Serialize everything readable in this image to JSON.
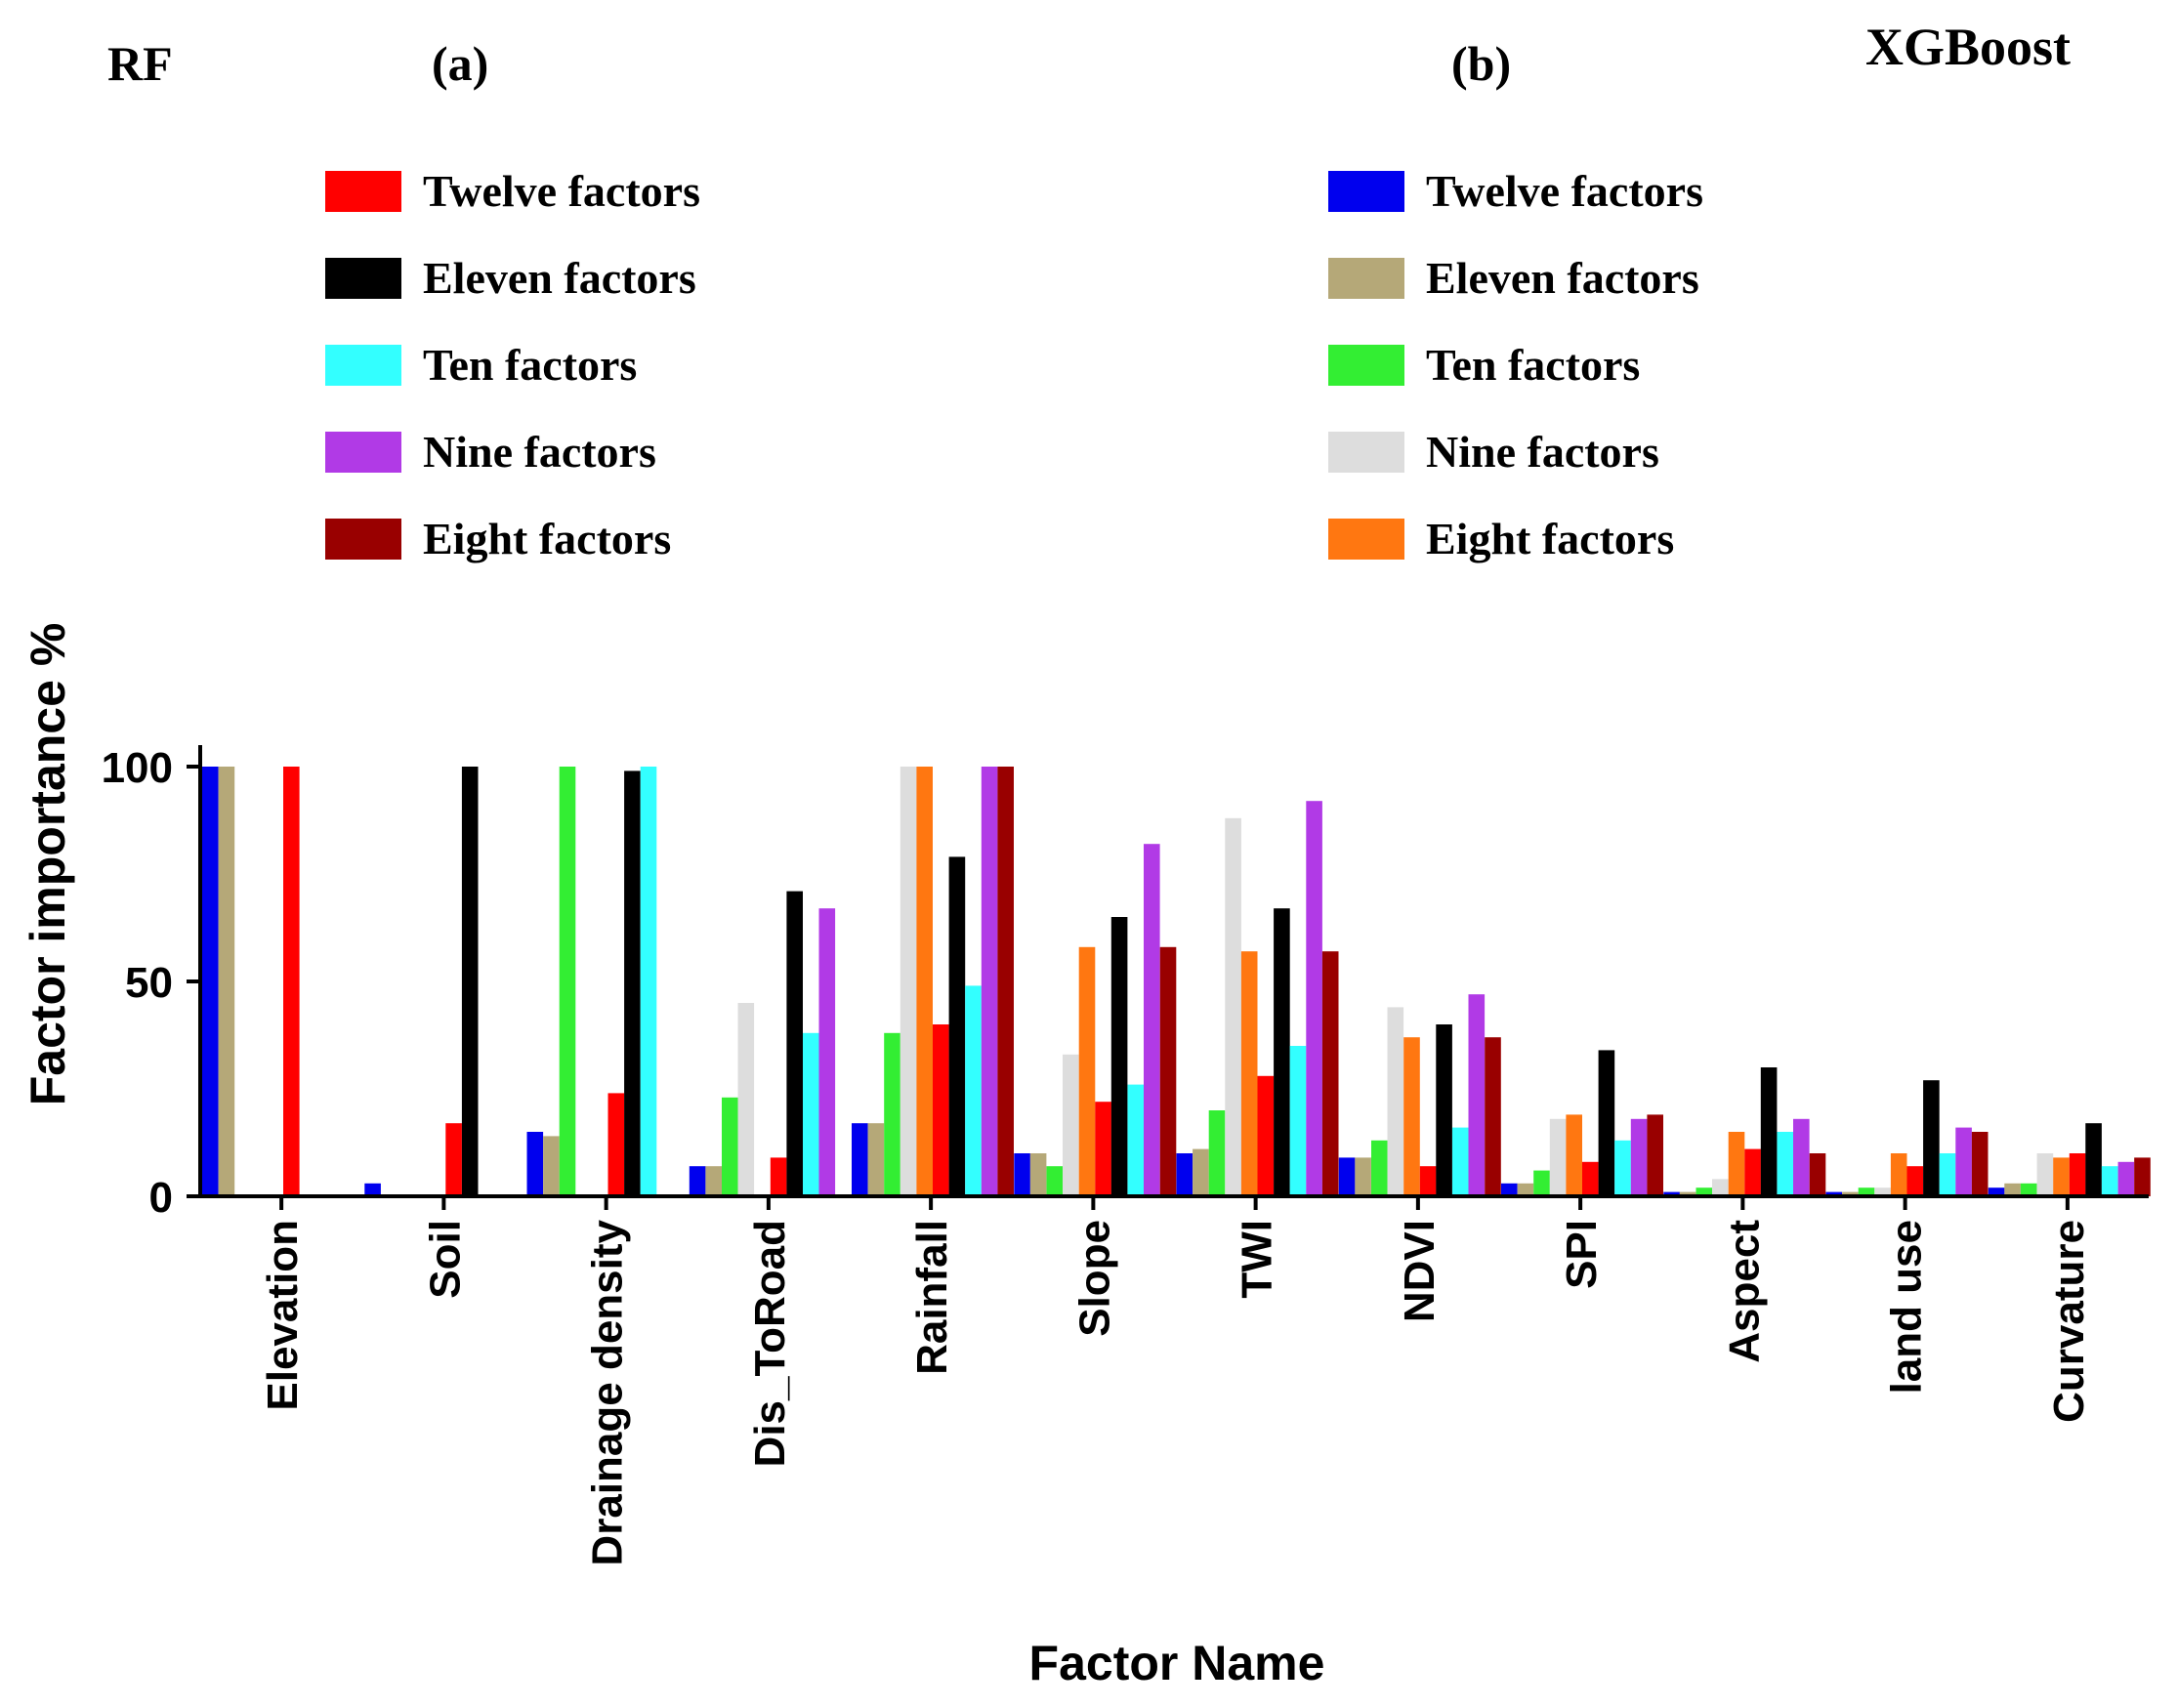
{
  "header": {
    "model_left": "RF",
    "panel_left": "(a)",
    "panel_right": "(b)",
    "model_right": "XGBoost"
  },
  "legend_rf": {
    "entries": [
      {
        "label": "Twelve factors",
        "color": "#ff0000"
      },
      {
        "label": "Eleven factors",
        "color": "#000000"
      },
      {
        "label": "Ten factors",
        "color": "#33ffff"
      },
      {
        "label": "Nine factors",
        "color": "#b13ae6"
      },
      {
        "label": "Eight factors",
        "color": "#990000"
      }
    ]
  },
  "legend_xgb": {
    "entries": [
      {
        "label": "Twelve factors",
        "color": "#0000ee"
      },
      {
        "label": "Eleven factors",
        "color": "#b5a878"
      },
      {
        "label": "Ten factors",
        "color": "#33ee33"
      },
      {
        "label": "Nine factors",
        "color": "#dddddd"
      },
      {
        "label": "Eight factors",
        "color": "#ff7711"
      }
    ]
  },
  "chart_data": {
    "type": "bar",
    "ylabel": "Factor importance %",
    "xlabel": "Factor Name",
    "ylim": [
      0,
      105
    ],
    "yticks": [
      0,
      50,
      100
    ],
    "grid": false,
    "categories": [
      "Elevation",
      "Soil",
      "Drainage density",
      "Dis_ToRoad",
      "Rainfall",
      "Slope",
      "TWI",
      "NDVI",
      "SPI",
      "Aspect",
      "land use",
      "Curvature"
    ],
    "series": [
      {
        "model": "XGBoost",
        "name": "Twelve factors",
        "color": "#0000ee",
        "values": [
          100,
          3,
          15,
          7,
          17,
          10,
          10,
          9,
          3,
          1,
          1,
          2
        ]
      },
      {
        "model": "XGBoost",
        "name": "Eleven factors",
        "color": "#b5a878",
        "values": [
          100,
          0,
          14,
          7,
          17,
          10,
          11,
          9,
          3,
          1,
          1,
          3
        ]
      },
      {
        "model": "XGBoost",
        "name": "Ten factors",
        "color": "#33ee33",
        "values": [
          0,
          0,
          100,
          23,
          38,
          7,
          20,
          13,
          6,
          2,
          2,
          3
        ]
      },
      {
        "model": "XGBoost",
        "name": "Nine factors",
        "color": "#dddddd",
        "values": [
          0,
          0,
          0,
          45,
          100,
          33,
          88,
          44,
          18,
          4,
          2,
          10
        ]
      },
      {
        "model": "XGBoost",
        "name": "Eight factors",
        "color": "#ff7711",
        "values": [
          0,
          0,
          0,
          0,
          100,
          58,
          57,
          37,
          19,
          15,
          10,
          9
        ]
      },
      {
        "model": "RF",
        "name": "Twelve factors",
        "color": "#ff0000",
        "values": [
          100,
          17,
          24,
          9,
          40,
          22,
          28,
          7,
          8,
          11,
          7,
          10
        ]
      },
      {
        "model": "RF",
        "name": "Eleven factors",
        "color": "#000000",
        "values": [
          0,
          100,
          99,
          71,
          79,
          65,
          67,
          40,
          34,
          30,
          27,
          17
        ]
      },
      {
        "model": "RF",
        "name": "Ten factors",
        "color": "#33ffff",
        "values": [
          0,
          0,
          100,
          38,
          49,
          26,
          35,
          16,
          13,
          15,
          10,
          7
        ]
      },
      {
        "model": "RF",
        "name": "Nine factors",
        "color": "#b13ae6",
        "values": [
          0,
          0,
          0,
          67,
          100,
          82,
          92,
          47,
          18,
          18,
          16,
          8
        ]
      },
      {
        "model": "RF",
        "name": "Eight factors",
        "color": "#990000",
        "values": [
          0,
          0,
          0,
          0,
          100,
          58,
          57,
          37,
          19,
          10,
          15,
          9
        ]
      }
    ]
  }
}
